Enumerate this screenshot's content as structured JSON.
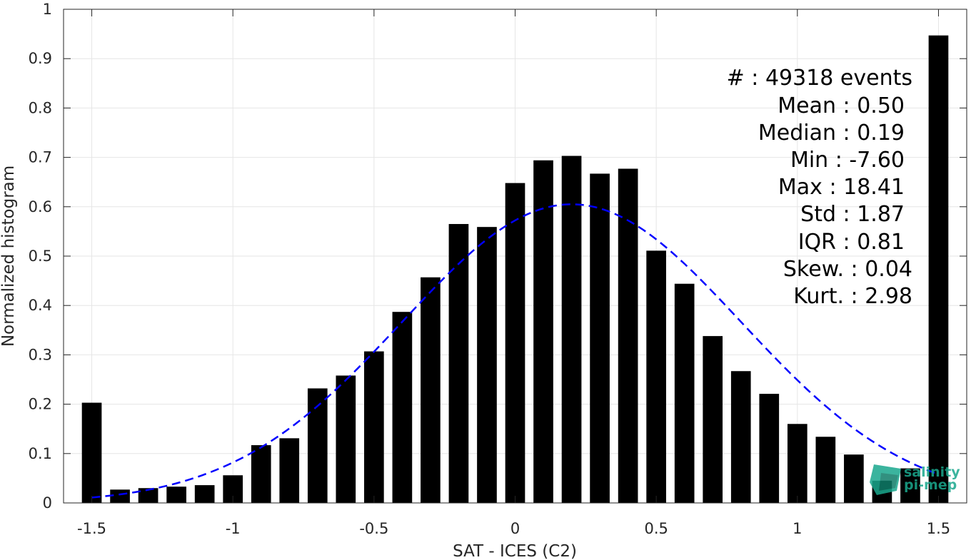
{
  "chart_data": {
    "type": "bar",
    "xlabel": "SAT - ICES (C2)",
    "ylabel": "Normalized histogram",
    "xlim": [
      -1.6,
      1.6
    ],
    "ylim": [
      0,
      1
    ],
    "grid": true,
    "xticks": [
      -1.5,
      -1,
      -0.5,
      0,
      0.5,
      1,
      1.5
    ],
    "xtick_labels": [
      "-1.5",
      "-1",
      "-0.5",
      "0",
      "0.5",
      "1",
      "1.5"
    ],
    "yticks": [
      0,
      0.1,
      0.2,
      0.3,
      0.4,
      0.5,
      0.6,
      0.7,
      0.8,
      0.9,
      1
    ],
    "ytick_labels": [
      "0",
      "0.1",
      "0.2",
      "0.3",
      "0.4",
      "0.5",
      "0.6",
      "0.7",
      "0.8",
      "0.9",
      "1"
    ],
    "bar_width": 0.07,
    "bar_color": "#000000",
    "bars": {
      "x": [
        -1.5,
        -1.4,
        -1.3,
        -1.2,
        -1.1,
        -1.0,
        -0.9,
        -0.8,
        -0.7,
        -0.6,
        -0.5,
        -0.4,
        -0.3,
        -0.2,
        -0.1,
        0.0,
        0.1,
        0.2,
        0.3,
        0.4,
        0.5,
        0.6,
        0.7,
        0.8,
        0.9,
        1.0,
        1.1,
        1.2,
        1.3,
        1.4,
        1.5
      ],
      "values": [
        0.203,
        0.027,
        0.03,
        0.033,
        0.036,
        0.056,
        0.117,
        0.131,
        0.232,
        0.258,
        0.307,
        0.387,
        0.457,
        0.565,
        0.559,
        0.648,
        0.694,
        0.703,
        0.667,
        0.677,
        0.511,
        0.444,
        0.338,
        0.267,
        0.221,
        0.16,
        0.134,
        0.098,
        0.045,
        0.07,
        0.947
      ]
    },
    "fit_curve": {
      "color": "#0000ff",
      "style": "dashed",
      "mean": 0.2,
      "std": 0.6,
      "peak": 0.605,
      "x_range": [
        -1.5,
        1.5
      ]
    },
    "annotation": {
      "lines": [
        "#  : 49318 events",
        "Mean : 0.50",
        "Median : 0.19",
        "Min : -7.60",
        "Max : 18.41",
        "Std : 1.87",
        "IQR : 0.81",
        "Skew. : 0.04",
        "Kurt. : 2.98"
      ]
    },
    "watermark": {
      "line1": "salinity",
      "line2": "pi-mep",
      "color": "#1aa88e"
    }
  }
}
